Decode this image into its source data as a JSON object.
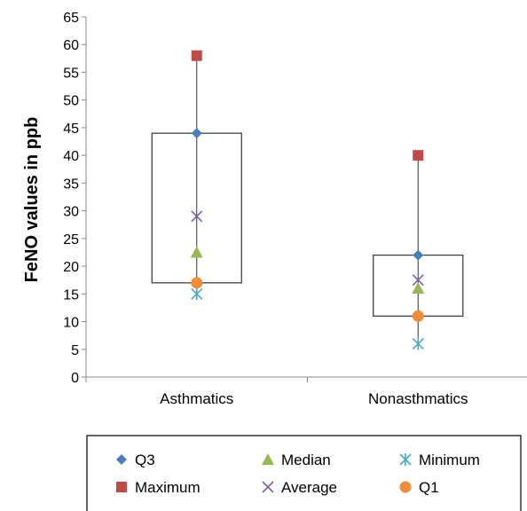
{
  "chart_data": {
    "type": "box",
    "title": "",
    "xlabel": "",
    "ylabel": "FeNO values in ppb",
    "ylim": [
      0,
      65
    ],
    "yticks": [
      0,
      5,
      10,
      15,
      20,
      25,
      30,
      35,
      40,
      45,
      50,
      55,
      60,
      65
    ],
    "grid": false,
    "legend_position": "bottom",
    "categories": [
      "Asthmatics",
      "Nonasthmatics"
    ],
    "series": [
      {
        "name": "Q3",
        "key": "q3",
        "marker": "diamond",
        "color": "#4a7ebb",
        "values": [
          44,
          22
        ]
      },
      {
        "name": "Maximum",
        "key": "max",
        "marker": "square",
        "color": "#be4b48",
        "values": [
          58,
          40
        ]
      },
      {
        "name": "Median",
        "key": "median",
        "marker": "triangle",
        "color": "#98b954",
        "values": [
          22.5,
          16
        ]
      },
      {
        "name": "Average",
        "key": "avg",
        "marker": "x",
        "color": "#7d60a0",
        "values": [
          29,
          17.5
        ]
      },
      {
        "name": "Minimum",
        "key": "min",
        "marker": "star",
        "color": "#46aac5",
        "values": [
          15,
          6
        ]
      },
      {
        "name": "Q1",
        "key": "q1",
        "marker": "circle",
        "color": "#f08c36",
        "values": [
          17,
          11
        ]
      }
    ],
    "legend_order": [
      "Q3",
      "Median",
      "Minimum",
      "Maximum",
      "Average",
      "Q1"
    ]
  }
}
